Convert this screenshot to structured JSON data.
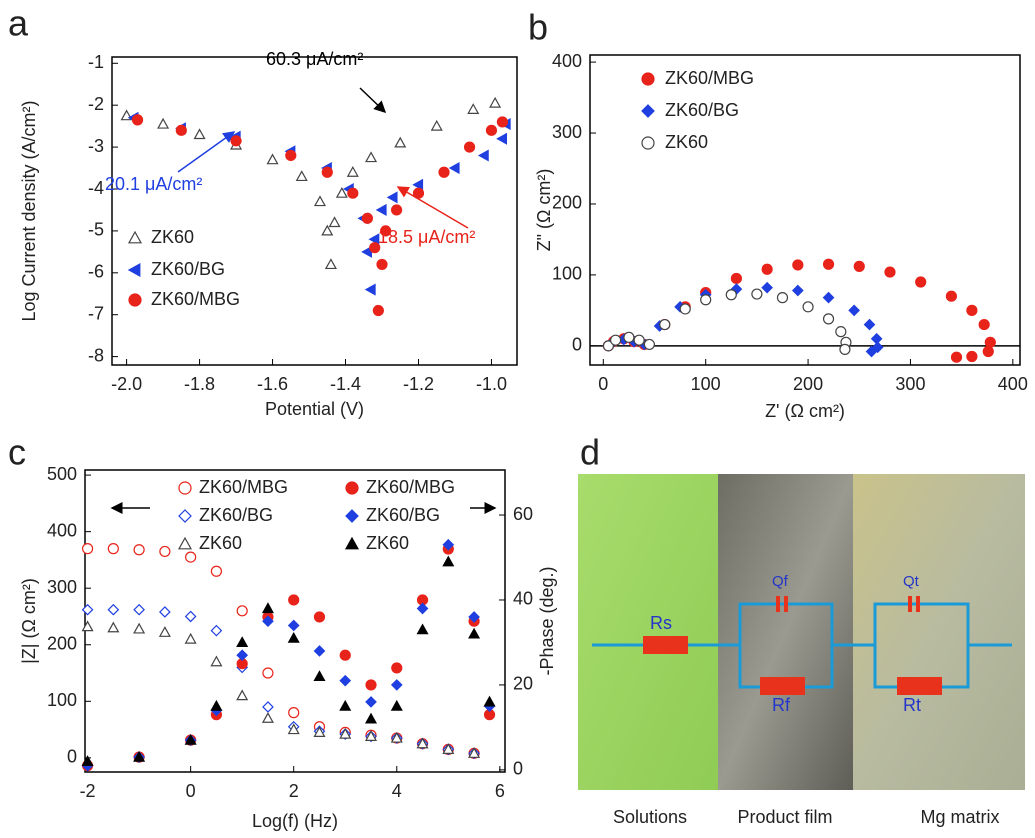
{
  "chart_data": [
    {
      "type": "scatter",
      "label": "a",
      "xlabel": "Potential (V)",
      "ylabel": "Log Current density (A/cm²)",
      "xlim": [
        -2.04,
        -0.93
      ],
      "ylim": [
        -8.2,
        -0.85
      ],
      "xticks": [
        {
          "value": -2,
          "label": "-2.0"
        },
        -1.8,
        -1.6,
        -1.4,
        -1.2,
        {
          "value": -1,
          "label": "-1.0"
        }
      ],
      "yticks": [
        -8,
        -7,
        -6,
        -5,
        -4,
        -3,
        -2,
        -1
      ],
      "series": [
        {
          "name": "ZK60",
          "color": "#444444",
          "marker": "triangle",
          "fill": "open",
          "x": [
            -2.0,
            -1.9,
            -1.8,
            -1.7,
            -1.6,
            -1.52,
            -1.47,
            -1.45,
            -1.44,
            -1.43,
            -1.41,
            -1.38,
            -1.33,
            -1.25,
            -1.15,
            -1.05,
            -0.99
          ],
          "values": [
            -2.25,
            -2.45,
            -2.7,
            -2.95,
            -3.3,
            -3.7,
            -4.3,
            -5.0,
            -5.8,
            -4.8,
            -4.1,
            -3.6,
            -3.25,
            -2.9,
            -2.5,
            -2.1,
            -1.95
          ]
        },
        {
          "name": "ZK60/BG",
          "color": "#1f3fe0",
          "marker": "triangle-left",
          "fill": "filled",
          "x": [
            -1.98,
            -1.85,
            -1.7,
            -1.55,
            -1.45,
            -1.39,
            -1.35,
            -1.34,
            -1.33,
            -1.32,
            -1.3,
            -1.27,
            -1.2,
            -1.1,
            -1.02,
            -0.97,
            -0.96
          ],
          "values": [
            -2.3,
            -2.55,
            -2.75,
            -3.1,
            -3.5,
            -4.0,
            -4.7,
            -5.5,
            -6.4,
            -5.2,
            -4.5,
            -4.2,
            -3.9,
            -3.5,
            -3.2,
            -2.8,
            -2.45
          ]
        },
        {
          "name": "ZK60/MBG",
          "color": "#e8231a",
          "marker": "circle",
          "fill": "filled",
          "x": [
            -1.97,
            -1.85,
            -1.7,
            -1.55,
            -1.45,
            -1.38,
            -1.34,
            -1.32,
            -1.31,
            -1.3,
            -1.29,
            -1.26,
            -1.2,
            -1.13,
            -1.06,
            -1.0,
            -0.97
          ],
          "values": [
            -2.35,
            -2.6,
            -2.85,
            -3.2,
            -3.6,
            -4.1,
            -4.7,
            -5.4,
            -6.9,
            -5.8,
            -5.0,
            -4.5,
            -4.1,
            -3.6,
            -3.0,
            -2.6,
            -2.4
          ]
        }
      ],
      "annotations": [
        {
          "text": "60.3 μA/cm²",
          "color": "#000000"
        },
        {
          "text": "20.1 μA/cm²",
          "color": "#1f3fe0"
        },
        {
          "text": "18.5 μA/cm²",
          "color": "#e8231a"
        }
      ]
    },
    {
      "type": "scatter",
      "label": "b",
      "xlabel": "Z' (Ω cm²)",
      "ylabel": "Z\" (Ω cm²)",
      "xlim": [
        -13,
        407
      ],
      "ylim": [
        -27,
        410
      ],
      "xticks": [
        0,
        100,
        200,
        300,
        400
      ],
      "yticks": [
        0,
        100,
        200,
        300,
        400
      ],
      "series": [
        {
          "name": "ZK60/MBG",
          "color": "#e8231a",
          "marker": "circle",
          "fill": "filled",
          "x": [
            5,
            10,
            20,
            30,
            40,
            60,
            80,
            100,
            130,
            160,
            190,
            220,
            250,
            280,
            310,
            340,
            360,
            372,
            378,
            376,
            360,
            345
          ],
          "values": [
            0,
            6,
            10,
            6,
            2,
            30,
            55,
            75,
            95,
            108,
            114,
            115,
            112,
            104,
            90,
            70,
            50,
            30,
            5,
            -8,
            -15,
            -16
          ]
        },
        {
          "name": "ZK60/BG",
          "color": "#1f3fe0",
          "marker": "diamond",
          "fill": "filled",
          "x": [
            5,
            10,
            20,
            30,
            40,
            55,
            75,
            100,
            130,
            160,
            190,
            220,
            245,
            260,
            267,
            268,
            262
          ],
          "values": [
            0,
            6,
            9,
            6,
            2,
            28,
            55,
            72,
            80,
            82,
            78,
            68,
            50,
            30,
            10,
            -2,
            -8
          ]
        },
        {
          "name": "ZK60",
          "color": "#444444",
          "marker": "circle",
          "fill": "open",
          "x": [
            5,
            12,
            25,
            35,
            45,
            60,
            80,
            100,
            125,
            150,
            175,
            200,
            220,
            232,
            237,
            236
          ],
          "values": [
            0,
            8,
            12,
            8,
            2,
            30,
            52,
            65,
            72,
            73,
            68,
            55,
            38,
            20,
            5,
            -5
          ]
        }
      ]
    },
    {
      "type": "scatter",
      "label": "c",
      "xlabel": "Log(f) (Hz)",
      "ylabel": "|Z| (Ω cm²)",
      "y2label": "-Phase (deg.)",
      "xlim": [
        -2.05,
        6.1
      ],
      "ylim": [
        -25,
        509
      ],
      "y2lim": [
        -0.5,
        70.6
      ],
      "xticks": [
        -2,
        0,
        2,
        4,
        6
      ],
      "yticks": [
        0,
        100,
        200,
        300,
        400,
        500
      ],
      "y2ticks": [
        0,
        20,
        40,
        60
      ],
      "series": [
        {
          "name": "ZK60/MBG",
          "color": "#e8231a",
          "marker": "circle",
          "fill": "open",
          "axis": "y",
          "x": [
            -2,
            -1.5,
            -1,
            -0.5,
            0,
            0.5,
            1,
            1.5,
            2,
            2.5,
            3,
            3.5,
            4,
            4.5,
            5,
            5.5
          ],
          "values": [
            370,
            370,
            368,
            365,
            355,
            330,
            260,
            150,
            80,
            55,
            45,
            40,
            35,
            25,
            15,
            8
          ]
        },
        {
          "name": "ZK60/BG",
          "color": "#1f3fe0",
          "marker": "diamond",
          "fill": "open",
          "axis": "y",
          "x": [
            -2,
            -1.5,
            -1,
            -0.5,
            0,
            0.5,
            1,
            1.5,
            2,
            2.5,
            3,
            3.5,
            4,
            4.5,
            5,
            5.5
          ],
          "values": [
            262,
            262,
            262,
            258,
            250,
            225,
            160,
            90,
            55,
            47,
            42,
            38,
            35,
            25,
            15,
            8
          ]
        },
        {
          "name": "ZK60",
          "color": "#444444",
          "marker": "triangle",
          "fill": "open",
          "axis": "y",
          "x": [
            -2,
            -1.5,
            -1,
            -0.5,
            0,
            0.5,
            1,
            1.5,
            2,
            2.5,
            3,
            3.5,
            4,
            4.5,
            5,
            5.5
          ],
          "values": [
            232,
            230,
            228,
            222,
            210,
            170,
            110,
            70,
            50,
            45,
            42,
            38,
            35,
            25,
            15,
            8
          ]
        },
        {
          "name": "ZK60/MBG",
          "color": "#e8231a",
          "marker": "circle",
          "fill": "filled",
          "axis": "y2",
          "x": [
            -2,
            -1,
            0,
            0.5,
            1,
            1.5,
            2,
            2.5,
            3,
            3.5,
            4,
            4.5,
            5,
            5.5,
            5.8
          ],
          "values": [
            1,
            3,
            7,
            13,
            25,
            36,
            40,
            36,
            27,
            20,
            24,
            40,
            52,
            35,
            13
          ]
        },
        {
          "name": "ZK60/BG",
          "color": "#1f3fe0",
          "marker": "diamond",
          "fill": "filled",
          "axis": "y2",
          "x": [
            -2,
            -1,
            0,
            0.5,
            1,
            1.5,
            2,
            2.5,
            3,
            3.5,
            4,
            4.5,
            5,
            5.5,
            5.8
          ],
          "values": [
            1,
            3,
            7,
            14,
            27,
            35,
            34,
            28,
            21,
            16,
            20,
            38,
            53,
            36,
            15
          ]
        },
        {
          "name": "ZK60",
          "color": "#000000",
          "marker": "triangle",
          "fill": "filled",
          "axis": "y2",
          "x": [
            -2,
            -1,
            0,
            0.5,
            1,
            1.5,
            2,
            2.5,
            3,
            3.5,
            4,
            4.5,
            5,
            5.5,
            5.8
          ],
          "values": [
            2,
            3,
            7,
            15,
            30,
            38,
            31,
            22,
            15,
            12,
            15,
            33,
            49,
            32,
            16
          ]
        }
      ]
    }
  ],
  "diagram": {
    "label": "d",
    "elements": [
      "Rs",
      "Qf",
      "Rf",
      "Qt",
      "Rt"
    ],
    "regions": [
      "Solutions",
      "Product film",
      "Mg matrix"
    ]
  }
}
